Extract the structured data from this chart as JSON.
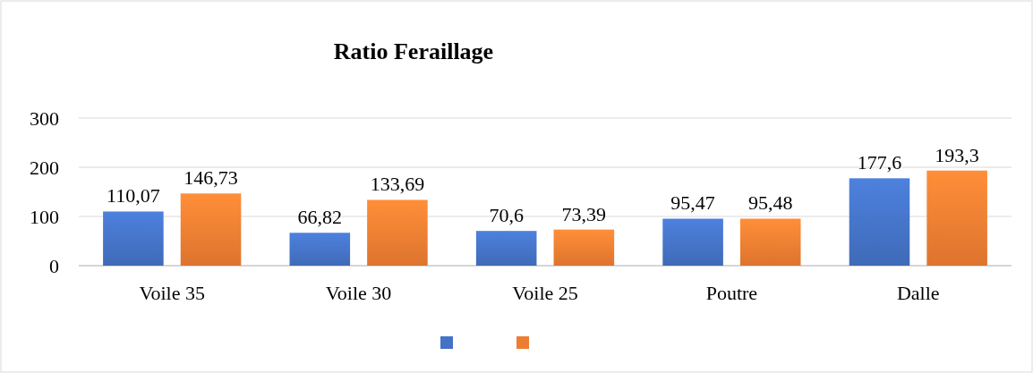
{
  "chart_data": {
    "type": "bar",
    "title": "Ratio Feraillage",
    "categories": [
      "Voile 35",
      "Voile 30",
      "Voile 25",
      "Poutre",
      "Dalle"
    ],
    "series": [
      {
        "color": "#4472c4",
        "values": [
          110.07,
          66.82,
          70.6,
          95.47,
          177.6
        ],
        "value_labels": [
          "110,07",
          "66,82",
          "70,6",
          "95,47",
          "177,6"
        ]
      },
      {
        "color": "#ed7d31",
        "values": [
          146.73,
          133.69,
          73.39,
          95.48,
          193.3
        ],
        "value_labels": [
          "146,73",
          "133,69",
          "73,39",
          "95,48",
          "193,3"
        ]
      }
    ],
    "ylim": [
      0,
      300
    ],
    "yticks": [
      0,
      100,
      200,
      300
    ],
    "grid": "y"
  }
}
